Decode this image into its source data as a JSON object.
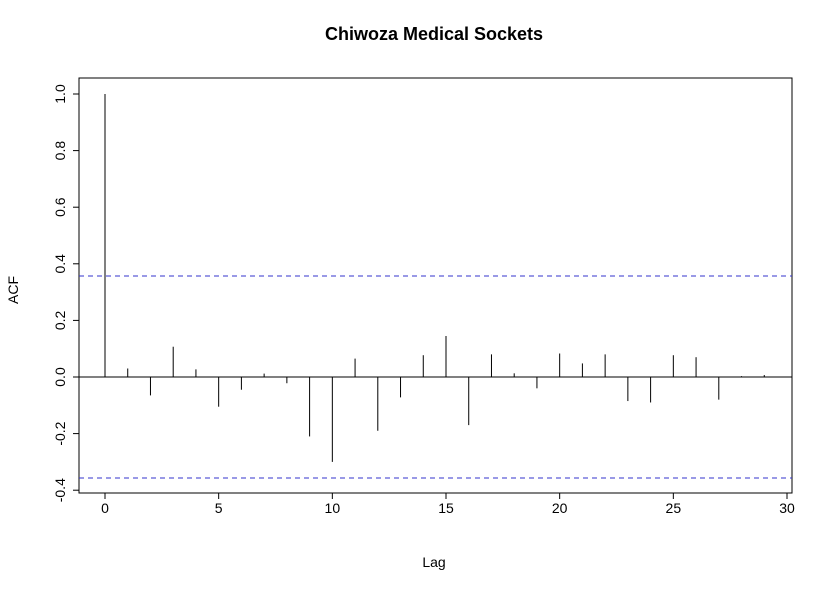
{
  "chart_data": {
    "type": "bar",
    "subtype": "acf-stem",
    "title": "Chiwoza Medical Sockets",
    "xlabel": "Lag",
    "ylabel": "ACF",
    "xlim": [
      0,
      30
    ],
    "ylim": [
      -0.4,
      1.0
    ],
    "x_ticks": [
      "0",
      "5",
      "10",
      "15",
      "20",
      "25",
      "30"
    ],
    "y_ticks": [
      "-0.4",
      "-0.2",
      "0.0",
      "0.2",
      "0.4",
      "0.6",
      "0.8",
      "1.0"
    ],
    "lags": [
      0,
      1,
      2,
      3,
      4,
      5,
      6,
      7,
      8,
      9,
      10,
      11,
      12,
      13,
      14,
      15,
      16,
      17,
      18,
      19,
      20,
      21,
      22,
      23,
      24,
      25,
      26,
      27,
      28,
      29
    ],
    "values": [
      1.0,
      0.03,
      -0.065,
      0.107,
      0.027,
      -0.105,
      -0.045,
      0.012,
      -0.022,
      -0.21,
      -0.3,
      0.065,
      -0.19,
      -0.072,
      0.077,
      0.145,
      -0.17,
      0.08,
      0.013,
      -0.04,
      0.083,
      0.048,
      0.08,
      -0.085,
      -0.09,
      0.077,
      0.07,
      -0.08,
      0.003,
      0.007
    ],
    "confidence_bound": 0.357,
    "confidence_color": "#3333cc",
    "grid": false
  }
}
